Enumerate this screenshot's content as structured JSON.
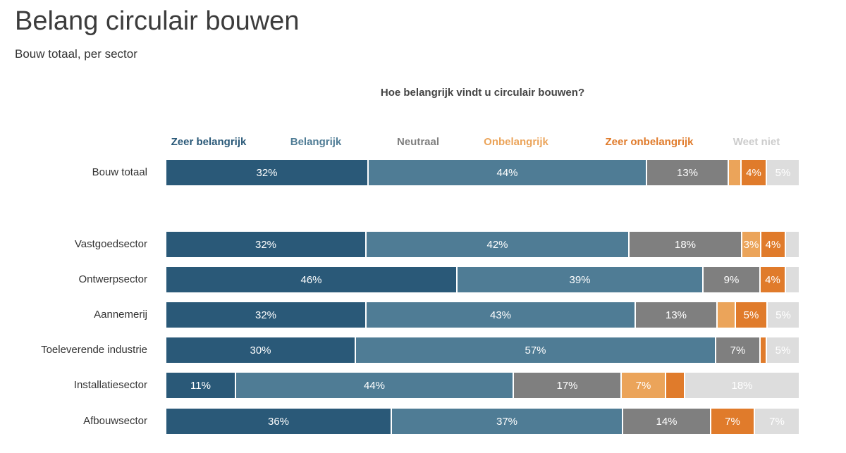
{
  "header": {
    "title": "Belang circulair bouwen",
    "subtitle": "Bouw totaal, per sector"
  },
  "chart_data": {
    "type": "bar",
    "orientation": "horizontal",
    "stacked": true,
    "normalized": true,
    "title": "Belang circulair bouwen",
    "subtitle": "Bouw totaal, per sector",
    "question": "Hoe belangrijk vindt u circulair bouwen?",
    "xlabel": "",
    "ylabel": "",
    "xlim": [
      0,
      100
    ],
    "unit": "%",
    "grid": false,
    "legend_position": "top",
    "categories": [
      "Bouw totaal",
      "Vastgoedsector",
      "Ontwerpsector",
      "Aannemerij",
      "Toeleverende industrie",
      "Installatiesector",
      "Afbouwsector"
    ],
    "series": [
      {
        "name": "Zeer belangrijk",
        "color": "#2a5978",
        "text_color": "#ffffff",
        "values": [
          32,
          32,
          46,
          32,
          30,
          11,
          36
        ],
        "labels": [
          "32%",
          "32%",
          "46%",
          "32%",
          "30%",
          "11%",
          "36%"
        ]
      },
      {
        "name": "Belangrijk",
        "color": "#4f7c95",
        "text_color": "#ffffff",
        "values": [
          44,
          42,
          39,
          43,
          57,
          44,
          37
        ],
        "labels": [
          "44%",
          "42%",
          "39%",
          "43%",
          "57%",
          "44%",
          "37%"
        ]
      },
      {
        "name": "Neutraal",
        "color": "#7f7f7f",
        "text_color": "#ffffff",
        "values": [
          13,
          18,
          9,
          13,
          7,
          17,
          14
        ],
        "labels": [
          "13%",
          "18%",
          "9%",
          "13%",
          "7%",
          "17%",
          "14%"
        ]
      },
      {
        "name": "Onbelangrijk",
        "color": "#eba45a",
        "text_color": "#ffffff",
        "values": [
          2,
          3,
          0,
          3,
          0,
          7,
          0
        ],
        "labels": [
          "",
          "3%",
          "",
          "",
          "",
          "7%",
          ""
        ]
      },
      {
        "name": "Zeer onbelangrijk",
        "color": "#e07b2b",
        "text_color": "#ffffff",
        "values": [
          4,
          4,
          4,
          5,
          1,
          3,
          7
        ],
        "labels": [
          "4%",
          "4%",
          "4%",
          "5%",
          "",
          "",
          "7%"
        ]
      },
      {
        "name": "Weet niet",
        "color": "#dddddd",
        "text_color": "#ffffff",
        "values": [
          5,
          2,
          2,
          5,
          5,
          18,
          7
        ],
        "labels": [
          "5%",
          "",
          "",
          "5%",
          "5%",
          "18%",
          "7%"
        ]
      }
    ],
    "legend_text_colors": [
      "#2a5978",
      "#4f7c95",
      "#7f7f7f",
      "#eba45a",
      "#e07b2b",
      "#cccccc"
    ]
  }
}
